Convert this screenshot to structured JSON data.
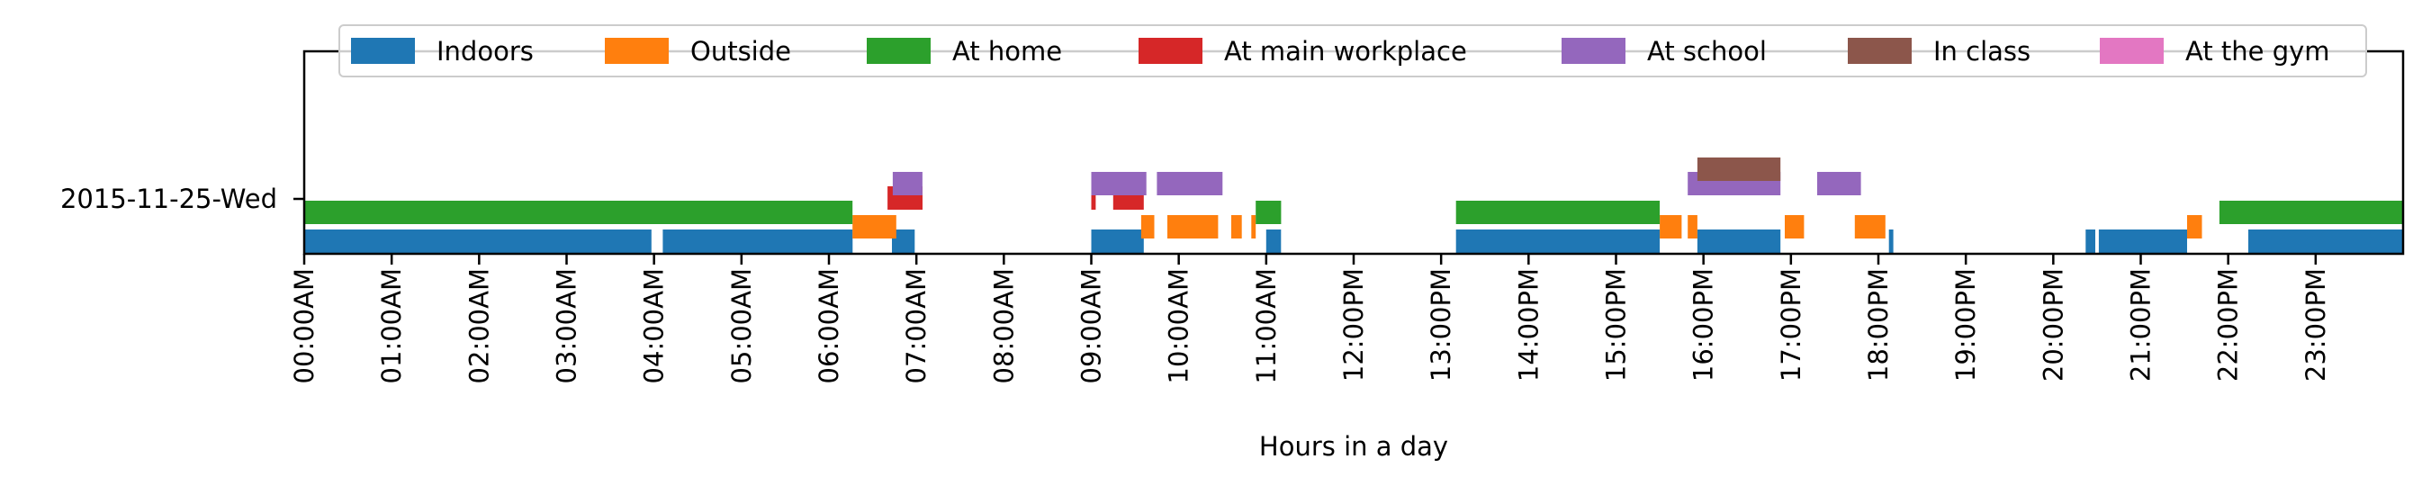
{
  "chart_data": {
    "type": "timeline",
    "xlabel": "Hours in a day",
    "ylabel": "",
    "title": "",
    "xlim": [
      0,
      24
    ],
    "x_ticks": [
      {
        "hour": 0,
        "label": "00:00AM"
      },
      {
        "hour": 1,
        "label": "01:00AM"
      },
      {
        "hour": 2,
        "label": "02:00AM"
      },
      {
        "hour": 3,
        "label": "03:00AM"
      },
      {
        "hour": 4,
        "label": "04:00AM"
      },
      {
        "hour": 5,
        "label": "05:00AM"
      },
      {
        "hour": 6,
        "label": "06:00AM"
      },
      {
        "hour": 7,
        "label": "07:00AM"
      },
      {
        "hour": 8,
        "label": "08:00AM"
      },
      {
        "hour": 9,
        "label": "09:00AM"
      },
      {
        "hour": 10,
        "label": "10:00AM"
      },
      {
        "hour": 11,
        "label": "11:00AM"
      },
      {
        "hour": 12,
        "label": "12:00PM"
      },
      {
        "hour": 13,
        "label": "13:00PM"
      },
      {
        "hour": 14,
        "label": "14:00PM"
      },
      {
        "hour": 15,
        "label": "15:00PM"
      },
      {
        "hour": 16,
        "label": "16:00PM"
      },
      {
        "hour": 17,
        "label": "17:00PM"
      },
      {
        "hour": 18,
        "label": "18:00PM"
      },
      {
        "hour": 19,
        "label": "19:00PM"
      },
      {
        "hour": 20,
        "label": "20:00PM"
      },
      {
        "hour": 21,
        "label": "21:00PM"
      },
      {
        "hour": 22,
        "label": "22:00PM"
      },
      {
        "hour": 23,
        "label": "23:00PM"
      }
    ],
    "y_categories": [
      "2015-11-25-Wed"
    ],
    "legend_position": "top-center",
    "series": [
      {
        "name": "Indoors",
        "color": "#1f77b4",
        "intervals": [
          [
            0.0,
            3.97
          ],
          [
            4.1,
            6.27
          ],
          [
            6.72,
            6.98
          ],
          [
            9.0,
            9.6
          ],
          [
            11.0,
            11.17
          ],
          [
            13.17,
            15.5
          ],
          [
            15.93,
            16.88
          ],
          [
            18.12,
            18.17
          ],
          [
            20.37,
            20.48
          ],
          [
            20.52,
            21.53
          ],
          [
            22.23,
            24.0
          ]
        ]
      },
      {
        "name": "Outside",
        "color": "#ff7f0e",
        "intervals": [
          [
            6.27,
            6.77
          ],
          [
            9.57,
            9.72
          ],
          [
            9.87,
            10.45
          ],
          [
            10.6,
            10.72
          ],
          [
            10.83,
            10.88
          ],
          [
            15.5,
            15.75
          ],
          [
            15.82,
            15.93
          ],
          [
            16.93,
            17.15
          ],
          [
            17.73,
            18.08
          ],
          [
            21.53,
            21.7
          ]
        ]
      },
      {
        "name": "At home",
        "color": "#2ca02c",
        "intervals": [
          [
            0.0,
            6.27
          ],
          [
            10.88,
            11.17
          ],
          [
            13.17,
            15.5
          ],
          [
            21.9,
            24.0
          ]
        ]
      },
      {
        "name": "At main workplace",
        "color": "#d62728",
        "intervals": [
          [
            6.67,
            7.07
          ],
          [
            9.0,
            9.05
          ],
          [
            9.25,
            9.6
          ]
        ]
      },
      {
        "name": "At school",
        "color": "#9467bd",
        "intervals": [
          [
            6.73,
            7.07
          ],
          [
            9.0,
            9.63
          ],
          [
            9.75,
            10.5
          ],
          [
            15.82,
            16.88
          ],
          [
            17.3,
            17.8
          ]
        ]
      },
      {
        "name": "In class",
        "color": "#8c564b",
        "intervals": [
          [
            15.93,
            16.88
          ]
        ]
      },
      {
        "name": "At the gym",
        "color": "#e377c2",
        "intervals": []
      }
    ]
  }
}
